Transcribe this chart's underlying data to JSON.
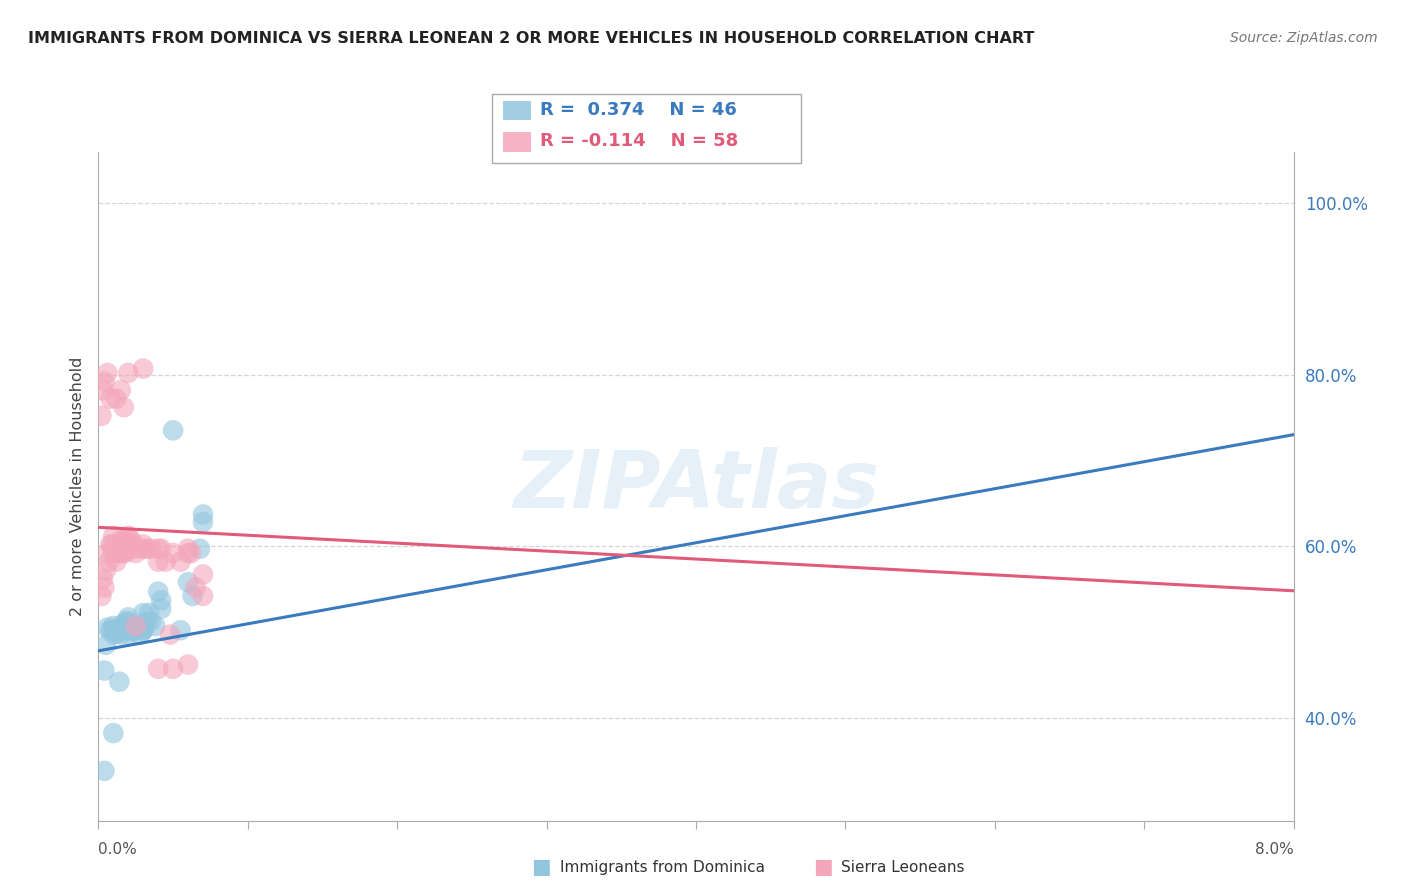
{
  "title": "IMMIGRANTS FROM DOMINICA VS SIERRA LEONEAN 2 OR MORE VEHICLES IN HOUSEHOLD CORRELATION CHART",
  "source": "Source: ZipAtlas.com",
  "ylabel": "2 or more Vehicles in Household",
  "ytick_labels": [
    "40.0%",
    "60.0%",
    "80.0%",
    "100.0%"
  ],
  "ytick_vals": [
    0.4,
    0.6,
    0.8,
    1.0
  ],
  "xmin": 0.0,
  "xmax": 0.08,
  "ymin": 0.28,
  "ymax": 1.06,
  "color_blue": "#92c5de",
  "color_pink": "#f4a6bb",
  "color_blue_line": "#3a7abf",
  "color_pink_line": "#e05a7a",
  "watermark": "ZIPAtlas",
  "blue_scatter": [
    [
      0.0004,
      0.455
    ],
    [
      0.0005,
      0.485
    ],
    [
      0.0006,
      0.505
    ],
    [
      0.0008,
      0.502
    ],
    [
      0.001,
      0.502
    ],
    [
      0.001,
      0.497
    ],
    [
      0.001,
      0.507
    ],
    [
      0.0012,
      0.498
    ],
    [
      0.0013,
      0.502
    ],
    [
      0.0015,
      0.497
    ],
    [
      0.0017,
      0.507
    ],
    [
      0.002,
      0.502
    ],
    [
      0.002,
      0.507
    ],
    [
      0.002,
      0.512
    ],
    [
      0.002,
      0.497
    ],
    [
      0.0022,
      0.502
    ],
    [
      0.0024,
      0.502
    ],
    [
      0.0025,
      0.507
    ],
    [
      0.0028,
      0.497
    ],
    [
      0.003,
      0.507
    ],
    [
      0.003,
      0.502
    ],
    [
      0.0034,
      0.522
    ],
    [
      0.0035,
      0.512
    ],
    [
      0.004,
      0.547
    ],
    [
      0.0042,
      0.537
    ],
    [
      0.005,
      0.735
    ],
    [
      0.006,
      0.558
    ],
    [
      0.0063,
      0.542
    ],
    [
      0.007,
      0.628
    ],
    [
      0.0055,
      0.502
    ],
    [
      0.0014,
      0.442
    ],
    [
      0.001,
      0.382
    ],
    [
      0.0004,
      0.338
    ],
    [
      0.0015,
      0.507
    ],
    [
      0.002,
      0.517
    ],
    [
      0.003,
      0.507
    ],
    [
      0.0038,
      0.507
    ],
    [
      0.0042,
      0.527
    ],
    [
      0.0018,
      0.512
    ],
    [
      0.0022,
      0.502
    ],
    [
      0.0025,
      0.502
    ],
    [
      0.003,
      0.522
    ],
    [
      0.0032,
      0.512
    ],
    [
      0.007,
      0.637
    ],
    [
      0.0068,
      0.597
    ],
    [
      0.003,
      0.502
    ]
  ],
  "pink_scatter": [
    [
      0.0002,
      0.542
    ],
    [
      0.0003,
      0.562
    ],
    [
      0.0004,
      0.552
    ],
    [
      0.0005,
      0.572
    ],
    [
      0.0006,
      0.592
    ],
    [
      0.0007,
      0.582
    ],
    [
      0.0008,
      0.602
    ],
    [
      0.0009,
      0.602
    ],
    [
      0.001,
      0.612
    ],
    [
      0.001,
      0.592
    ],
    [
      0.0012,
      0.602
    ],
    [
      0.0012,
      0.582
    ],
    [
      0.0013,
      0.592
    ],
    [
      0.0014,
      0.602
    ],
    [
      0.0015,
      0.607
    ],
    [
      0.0015,
      0.592
    ],
    [
      0.0016,
      0.592
    ],
    [
      0.0017,
      0.602
    ],
    [
      0.0018,
      0.592
    ],
    [
      0.0019,
      0.602
    ],
    [
      0.002,
      0.612
    ],
    [
      0.002,
      0.597
    ],
    [
      0.002,
      0.607
    ],
    [
      0.0022,
      0.607
    ],
    [
      0.0023,
      0.602
    ],
    [
      0.0025,
      0.592
    ],
    [
      0.0025,
      0.597
    ],
    [
      0.003,
      0.597
    ],
    [
      0.003,
      0.602
    ],
    [
      0.0032,
      0.597
    ],
    [
      0.004,
      0.582
    ],
    [
      0.0045,
      0.582
    ],
    [
      0.005,
      0.592
    ],
    [
      0.0055,
      0.582
    ],
    [
      0.006,
      0.597
    ],
    [
      0.0062,
      0.592
    ],
    [
      0.0002,
      0.752
    ],
    [
      0.0003,
      0.782
    ],
    [
      0.0004,
      0.792
    ],
    [
      0.0006,
      0.802
    ],
    [
      0.0008,
      0.772
    ],
    [
      0.0012,
      0.772
    ],
    [
      0.0015,
      0.782
    ],
    [
      0.0017,
      0.762
    ],
    [
      0.002,
      0.802
    ],
    [
      0.003,
      0.807
    ],
    [
      0.0035,
      0.597
    ],
    [
      0.004,
      0.597
    ],
    [
      0.0042,
      0.597
    ],
    [
      0.004,
      0.457
    ],
    [
      0.005,
      0.457
    ],
    [
      0.0048,
      0.497
    ],
    [
      0.006,
      0.462
    ],
    [
      0.006,
      0.592
    ],
    [
      0.0065,
      0.552
    ],
    [
      0.007,
      0.542
    ],
    [
      0.007,
      0.567
    ],
    [
      0.0025,
      0.507
    ]
  ],
  "blue_line_x": [
    0.0,
    0.08
  ],
  "blue_line_y": [
    0.478,
    0.73
  ],
  "pink_line_x": [
    0.0,
    0.08
  ],
  "pink_line_y": [
    0.622,
    0.548
  ]
}
